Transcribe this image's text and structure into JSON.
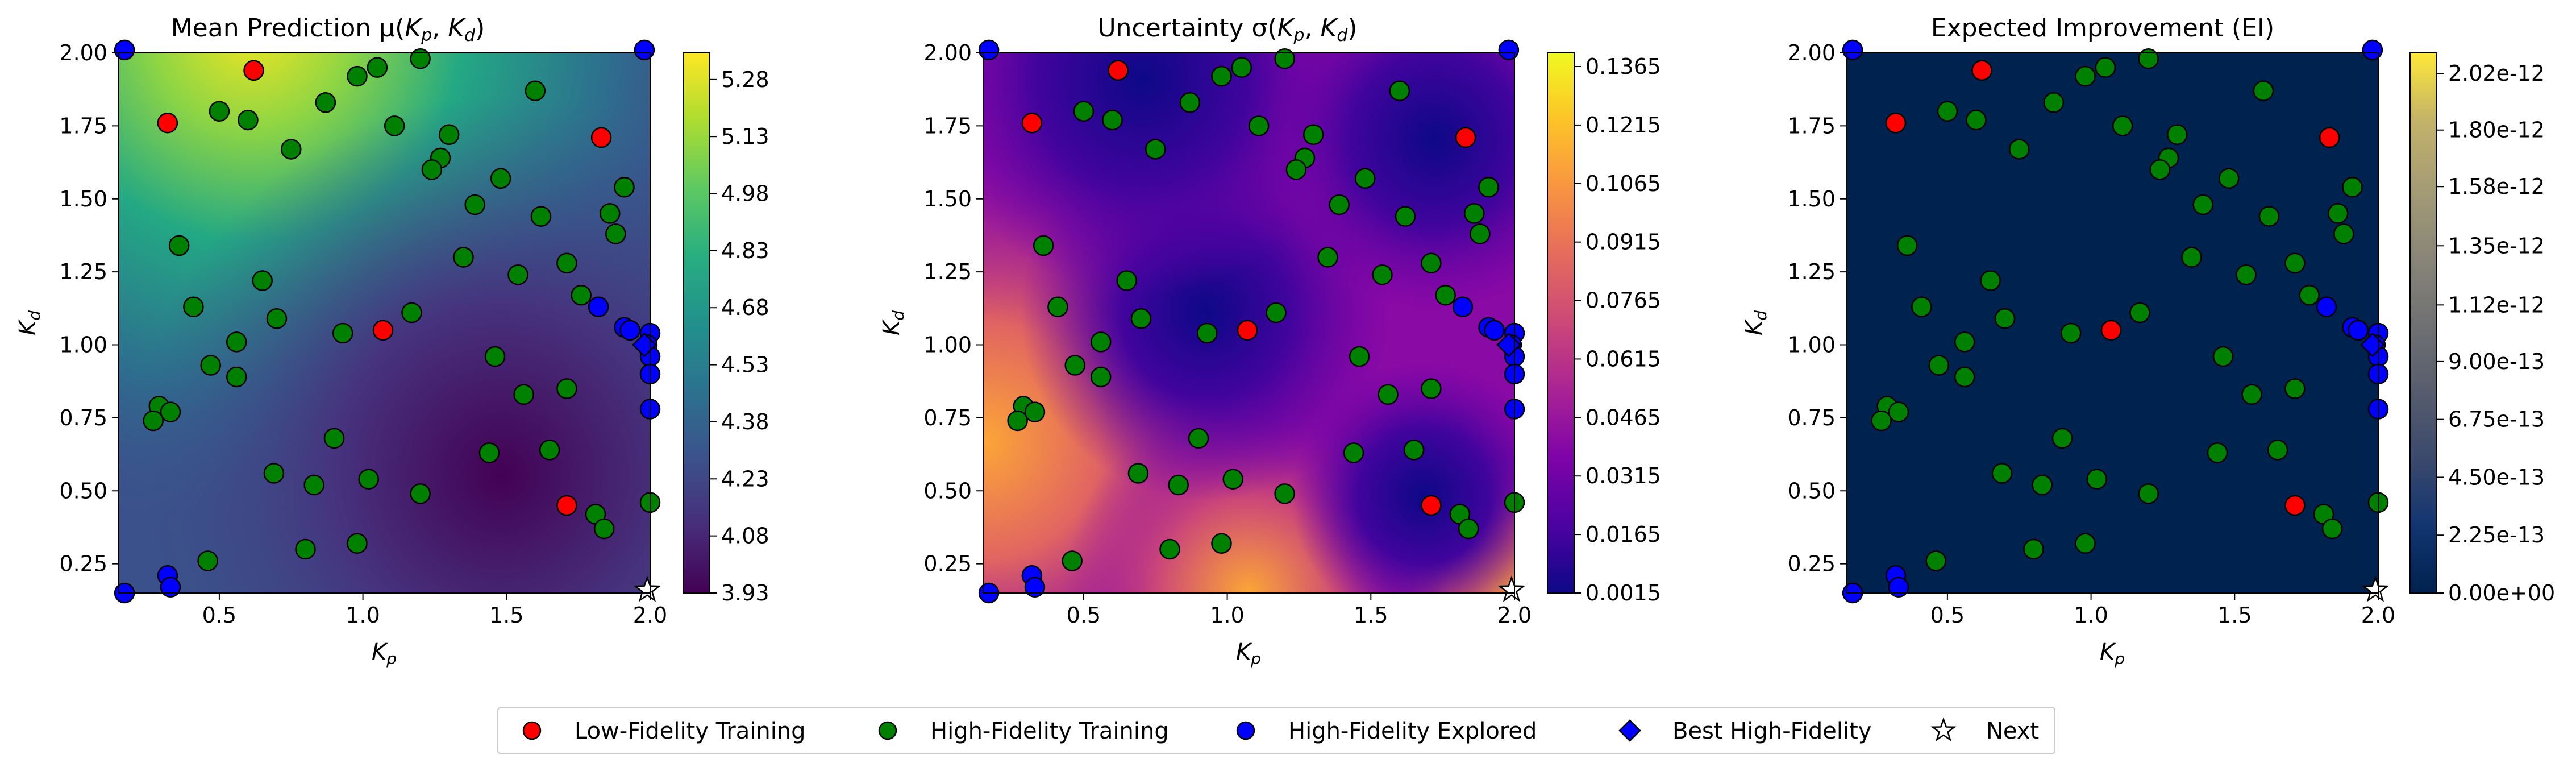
{
  "colors": {
    "low_fidelity": "#ff0000",
    "high_fidelity": "#008000",
    "explored": "#0000ff",
    "best": "#0000ff",
    "next": "#ffffff",
    "marker_edge": "#000000"
  },
  "legend": {
    "placement": "bottom-center",
    "entries": [
      {
        "label": "Low-Fidelity Training",
        "marker": "circle",
        "color": "#ff0000"
      },
      {
        "label": "High-Fidelity Training",
        "marker": "circle",
        "color": "#008000"
      },
      {
        "label": "High-Fidelity Explored",
        "marker": "circle",
        "color": "#0000ff"
      },
      {
        "label": "Best High-Fidelity",
        "marker": "diamond",
        "color": "#0000ff"
      },
      {
        "label": "Next",
        "marker": "star",
        "color": "#ffffff"
      }
    ]
  },
  "chart_data": [
    {
      "type": "heatmap",
      "title": "Mean Prediction μ(K_p, K_d)",
      "xlabel": "K_p",
      "ylabel": "K_d",
      "xlim": [
        0.15,
        2.0
      ],
      "ylim": [
        0.15,
        2.0
      ],
      "xticks": [
        "0.5",
        "1.0",
        "1.5",
        "2.0"
      ],
      "yticks": [
        "0.25",
        "0.50",
        "0.75",
        "1.00",
        "1.25",
        "1.50",
        "1.75",
        "2.00"
      ],
      "colormap": "viridis",
      "colorbar_range": [
        3.93,
        5.35
      ],
      "colorbar_ticks": [
        "3.93",
        "4.08",
        "4.23",
        "4.38",
        "4.53",
        "4.68",
        "4.83",
        "4.98",
        "5.13",
        "5.28"
      ],
      "grid": false
    },
    {
      "type": "heatmap",
      "title": "Uncertainty σ(K_p, K_d)",
      "xlabel": "K_p",
      "ylabel": "K_d",
      "xlim": [
        0.15,
        2.0
      ],
      "ylim": [
        0.15,
        2.0
      ],
      "xticks": [
        "0.5",
        "1.0",
        "1.5",
        "2.0"
      ],
      "yticks": [
        "0.25",
        "0.50",
        "0.75",
        "1.00",
        "1.25",
        "1.50",
        "1.75",
        "2.00"
      ],
      "colormap": "plasma",
      "colorbar_range": [
        0.0015,
        0.14
      ],
      "colorbar_ticks": [
        "0.0015",
        "0.0165",
        "0.0315",
        "0.0465",
        "0.0615",
        "0.0765",
        "0.0915",
        "0.1065",
        "0.1215",
        "0.1365"
      ],
      "grid": false
    },
    {
      "type": "heatmap",
      "title": "Expected Improvement (EI)",
      "xlabel": "K_p",
      "ylabel": "K_d",
      "xlim": [
        0.15,
        2.0
      ],
      "ylim": [
        0.15,
        2.0
      ],
      "xticks": [
        "0.5",
        "1.0",
        "1.5",
        "2.0"
      ],
      "yticks": [
        "0.25",
        "0.50",
        "0.75",
        "1.00",
        "1.25",
        "1.50",
        "1.75",
        "2.00"
      ],
      "colormap": "cividis",
      "colorbar_range": [
        0,
        2.1e-12
      ],
      "colorbar_ticks": [
        "0.00e+00",
        "2.25e-13",
        "4.50e-13",
        "6.75e-13",
        "9.00e-13",
        "1.12e-12",
        "1.35e-12",
        "1.58e-12",
        "1.80e-12",
        "2.02e-12"
      ],
      "grid": false
    }
  ],
  "points": {
    "low_fidelity": [
      [
        0.62,
        1.94
      ],
      [
        0.32,
        1.76
      ],
      [
        1.83,
        1.71
      ],
      [
        1.07,
        1.05
      ],
      [
        1.71,
        0.45
      ]
    ],
    "high_fidelity": [
      [
        0.5,
        1.8
      ],
      [
        0.6,
        1.77
      ],
      [
        0.75,
        1.67
      ],
      [
        0.87,
        1.83
      ],
      [
        0.98,
        1.92
      ],
      [
        1.05,
        1.95
      ],
      [
        1.11,
        1.75
      ],
      [
        1.2,
        1.98
      ],
      [
        1.27,
        1.64
      ],
      [
        1.3,
        1.72
      ],
      [
        1.24,
        1.6
      ],
      [
        1.6,
        1.87
      ],
      [
        1.35,
        1.3
      ],
      [
        1.39,
        1.48
      ],
      [
        1.48,
        1.57
      ],
      [
        1.62,
        1.44
      ],
      [
        1.86,
        1.45
      ],
      [
        1.91,
        1.54
      ],
      [
        1.88,
        1.38
      ],
      [
        0.36,
        1.34
      ],
      [
        0.41,
        1.13
      ],
      [
        0.65,
        1.22
      ],
      [
        0.7,
        1.09
      ],
      [
        0.93,
        1.04
      ],
      [
        1.17,
        1.11
      ],
      [
        1.54,
        1.24
      ],
      [
        1.71,
        1.28
      ],
      [
        1.76,
        1.17
      ],
      [
        1.46,
        0.96
      ],
      [
        0.56,
        1.01
      ],
      [
        0.47,
        0.93
      ],
      [
        0.56,
        0.89
      ],
      [
        1.56,
        0.83
      ],
      [
        1.71,
        0.85
      ],
      [
        0.29,
        0.79
      ],
      [
        0.33,
        0.77
      ],
      [
        0.27,
        0.74
      ],
      [
        0.9,
        0.68
      ],
      [
        1.65,
        0.64
      ],
      [
        1.44,
        0.63
      ],
      [
        0.69,
        0.56
      ],
      [
        0.83,
        0.52
      ],
      [
        1.02,
        0.54
      ],
      [
        1.2,
        0.49
      ],
      [
        1.81,
        0.42
      ],
      [
        1.84,
        0.37
      ],
      [
        2.0,
        0.46
      ],
      [
        0.8,
        0.3
      ],
      [
        0.98,
        0.32
      ],
      [
        0.46,
        0.26
      ]
    ],
    "explored": [
      [
        0.17,
        2.01
      ],
      [
        1.82,
        1.13
      ],
      [
        1.91,
        1.06
      ],
      [
        1.93,
        1.05
      ],
      [
        2.0,
        1.04
      ],
      [
        1.99,
        1.0
      ],
      [
        2.0,
        0.96
      ],
      [
        2.0,
        0.9
      ],
      [
        2.0,
        0.78
      ],
      [
        0.32,
        0.21
      ],
      [
        0.33,
        0.17
      ],
      [
        0.17,
        0.15
      ],
      [
        1.98,
        2.01
      ]
    ],
    "best": [
      [
        1.98,
        1.0
      ]
    ],
    "next": [
      [
        1.99,
        0.16
      ]
    ]
  }
}
